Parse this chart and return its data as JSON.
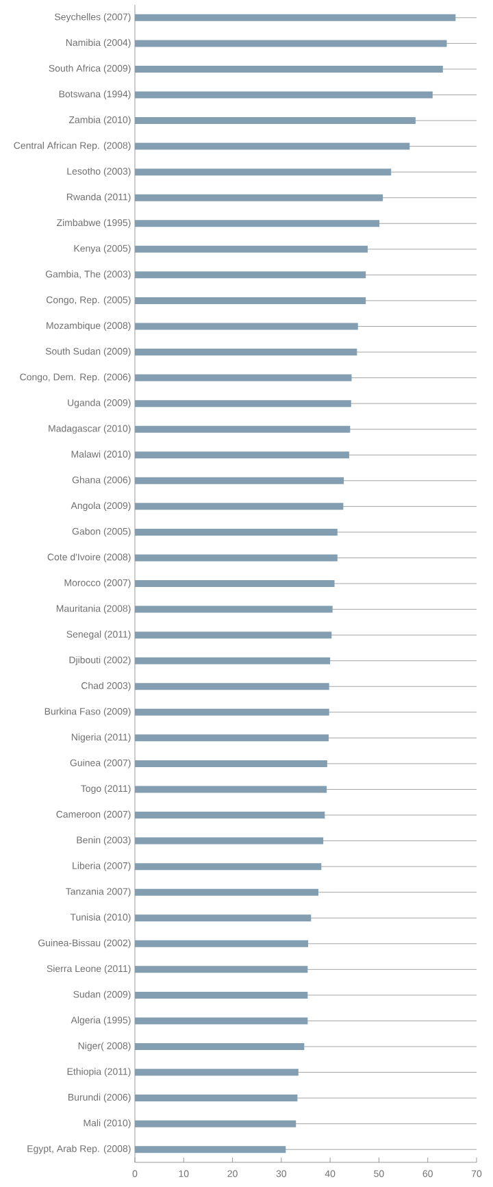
{
  "chart_data": {
    "type": "bar",
    "orientation": "horizontal",
    "color": "#839eb0",
    "grid": "y",
    "xlim": [
      0,
      70
    ],
    "xticks": [
      0,
      10,
      20,
      30,
      40,
      50,
      60,
      70
    ],
    "categories": [
      "Seychelles (2007)",
      "Namibia (2004)",
      "South Africa (2009)",
      "Botswana (1994)",
      "Zambia (2010)",
      "Central African Rep. (2008)",
      "Lesotho (2003)",
      "Rwanda (2011)",
      "Zimbabwe (1995)",
      "Kenya (2005)",
      "Gambia, The (2003)",
      "Congo, Rep. (2005)",
      "Mozambique (2008)",
      "South Sudan (2009)",
      "Congo, Dem. Rep. (2006)",
      "Uganda (2009)",
      "Madagascar (2010)",
      "Malawi (2010)",
      "Ghana (2006)",
      "Angola (2009)",
      "Gabon (2005)",
      "Cote d'Ivoire (2008)",
      "Morocco (2007)",
      "Mauritania (2008)",
      "Senegal (2011)",
      "Djibouti (2002)",
      "Chad 2003)",
      "Burkina Faso (2009)",
      "Nigeria (2011)",
      "Guinea (2007)",
      "Togo (2011)",
      "Cameroon (2007)",
      "Benin (2003)",
      "Liberia (2007)",
      "Tanzania 2007)",
      "Tunisia (2010)",
      "Guinea-Bissau (2002)",
      "Sierra Leone (2011)",
      "Sudan (2009)",
      "Algeria (1995)",
      "Niger( 2008)",
      "Ethiopia (2011)",
      "Burundi (2006)",
      "Mali (2010)",
      "Egypt, Arab Rep. (2008)"
    ],
    "values": [
      65.7,
      63.9,
      63.1,
      61.0,
      57.5,
      56.3,
      52.5,
      50.8,
      50.1,
      47.7,
      47.3,
      47.3,
      45.7,
      45.5,
      44.4,
      44.3,
      44.1,
      43.9,
      42.8,
      42.7,
      41.5,
      41.5,
      40.9,
      40.5,
      40.3,
      40.0,
      39.8,
      39.8,
      39.7,
      39.4,
      39.3,
      38.9,
      38.6,
      38.2,
      37.6,
      36.1,
      35.5,
      35.4,
      35.4,
      35.4,
      34.7,
      33.5,
      33.3,
      33.0,
      30.9
    ]
  }
}
